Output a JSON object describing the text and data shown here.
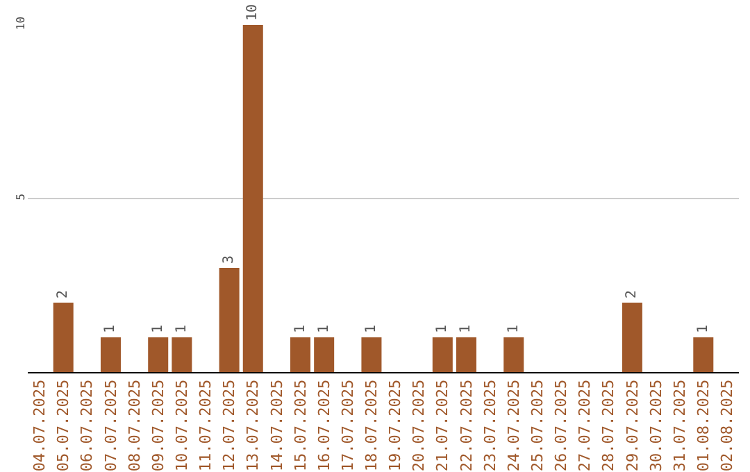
{
  "chart_data": {
    "type": "bar",
    "categories": [
      "04.07.2025",
      "05.07.2025",
      "06.07.2025",
      "07.07.2025",
      "08.07.2025",
      "09.07.2025",
      "10.07.2025",
      "11.07.2025",
      "12.07.2025",
      "13.07.2025",
      "14.07.2025",
      "15.07.2025",
      "16.07.2025",
      "17.07.2025",
      "18.07.2025",
      "19.07.2025",
      "20.07.2025",
      "21.07.2025",
      "22.07.2025",
      "23.07.2025",
      "24.07.2025",
      "25.07.2025",
      "26.07.2025",
      "27.07.2025",
      "28.07.2025",
      "29.07.2025",
      "30.07.2025",
      "31.07.2025",
      "01.08.2025",
      "02.08.2025"
    ],
    "values": [
      0,
      2,
      0,
      1,
      0,
      1,
      1,
      0,
      3,
      10,
      0,
      1,
      1,
      0,
      1,
      0,
      0,
      1,
      1,
      0,
      1,
      0,
      0,
      0,
      0,
      2,
      0,
      0,
      1,
      0
    ],
    "value_labels": [
      null,
      "2",
      null,
      "1",
      null,
      "1",
      "1",
      null,
      "3",
      "10",
      null,
      "1",
      "1",
      null,
      "1",
      null,
      null,
      "1",
      "1",
      null,
      "1",
      null,
      null,
      null,
      null,
      "2",
      null,
      null,
      "1",
      null
    ],
    "color": "#a0582a",
    "ylim": [
      0,
      10
    ],
    "yticks": [
      5,
      10
    ],
    "grid": "y",
    "legend": false
  }
}
